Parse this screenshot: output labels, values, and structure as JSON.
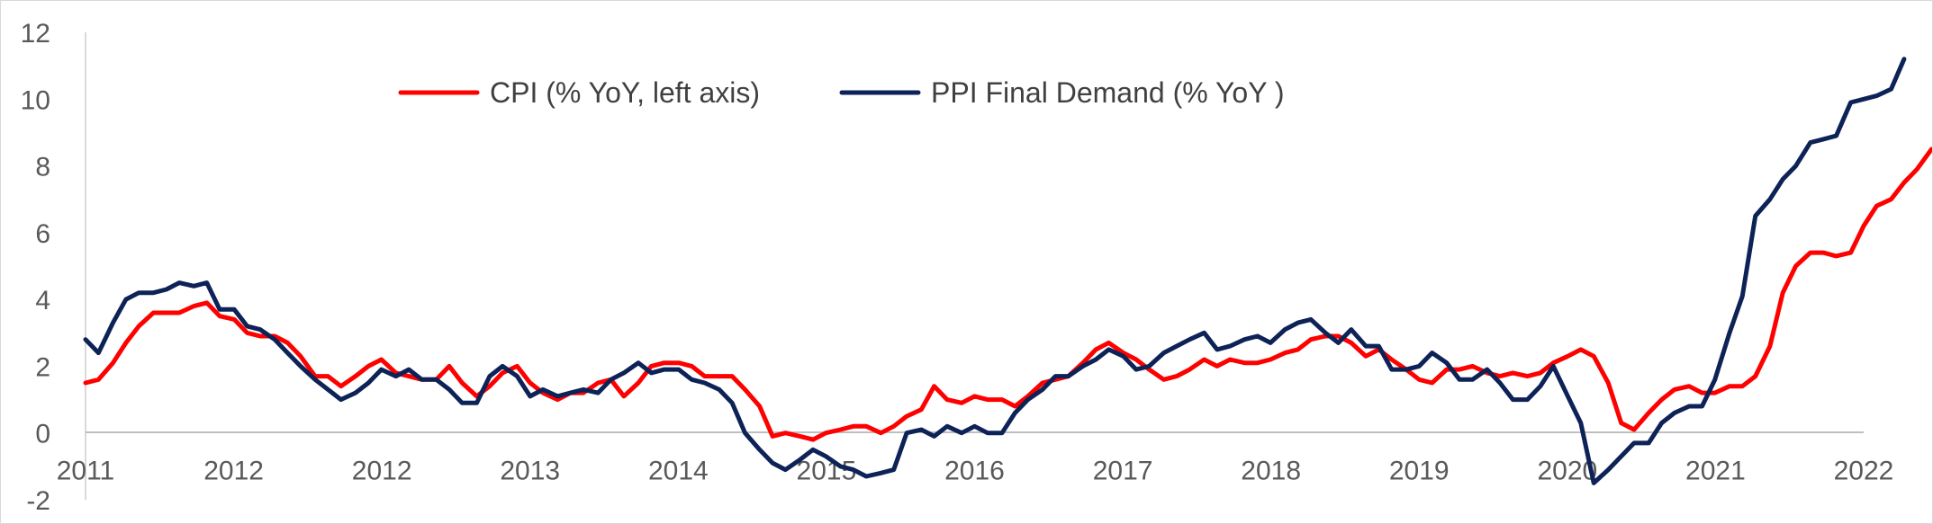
{
  "chart_data": {
    "type": "line",
    "title": "",
    "xlabel": "",
    "ylabel": "",
    "ylim": [
      -2,
      12
    ],
    "yticks": [
      -2,
      0,
      2,
      4,
      6,
      8,
      10,
      12
    ],
    "xlim": [
      2011,
      2022
    ],
    "xtick_labels": [
      "2011",
      "2012",
      "2012",
      "2013",
      "2014",
      "2015",
      "2016",
      "2017",
      "2018",
      "2019",
      "2020",
      "2021",
      "2022"
    ],
    "grid": false,
    "legend_position": "top-center",
    "series": [
      {
        "name": "CPI  (% YoY, left axis)",
        "color": "#ff0000",
        "points": [
          [
            2011.0,
            1.5
          ],
          [
            2011.08,
            1.6
          ],
          [
            2011.17,
            2.1
          ],
          [
            2011.25,
            2.7
          ],
          [
            2011.33,
            3.2
          ],
          [
            2011.42,
            3.6
          ],
          [
            2011.5,
            3.6
          ],
          [
            2011.58,
            3.6
          ],
          [
            2011.67,
            3.8
          ],
          [
            2011.75,
            3.9
          ],
          [
            2011.83,
            3.5
          ],
          [
            2011.92,
            3.4
          ],
          [
            2012.0,
            3.0
          ],
          [
            2012.08,
            2.9
          ],
          [
            2012.17,
            2.9
          ],
          [
            2012.25,
            2.7
          ],
          [
            2012.33,
            2.3
          ],
          [
            2012.42,
            1.7
          ],
          [
            2012.5,
            1.7
          ],
          [
            2012.58,
            1.4
          ],
          [
            2012.67,
            1.7
          ],
          [
            2012.75,
            2.0
          ],
          [
            2012.83,
            2.2
          ],
          [
            2012.92,
            1.8
          ],
          [
            2013.0,
            1.7
          ],
          [
            2013.08,
            1.6
          ],
          [
            2013.17,
            1.6
          ],
          [
            2013.25,
            2.0
          ],
          [
            2013.33,
            1.5
          ],
          [
            2013.42,
            1.1
          ],
          [
            2013.5,
            1.4
          ],
          [
            2013.58,
            1.8
          ],
          [
            2013.67,
            2.0
          ],
          [
            2013.75,
            1.5
          ],
          [
            2013.83,
            1.2
          ],
          [
            2013.92,
            1.0
          ],
          [
            2014.0,
            1.2
          ],
          [
            2014.08,
            1.2
          ],
          [
            2014.17,
            1.5
          ],
          [
            2014.25,
            1.6
          ],
          [
            2014.33,
            1.1
          ],
          [
            2014.42,
            1.5
          ],
          [
            2014.5,
            2.0
          ],
          [
            2014.58,
            2.1
          ],
          [
            2014.67,
            2.1
          ],
          [
            2014.75,
            2.0
          ],
          [
            2014.83,
            1.7
          ],
          [
            2014.92,
            1.7
          ],
          [
            2015.0,
            1.7
          ],
          [
            2015.08,
            1.3
          ],
          [
            2015.17,
            0.8
          ],
          [
            2015.25,
            -0.1
          ],
          [
            2015.33,
            0.0
          ],
          [
            2015.42,
            -0.1
          ],
          [
            2015.5,
            -0.2
          ],
          [
            2015.58,
            0.0
          ],
          [
            2015.67,
            0.1
          ],
          [
            2015.75,
            0.2
          ],
          [
            2015.83,
            0.2
          ],
          [
            2015.92,
            0.0
          ],
          [
            2016.0,
            0.2
          ],
          [
            2016.08,
            0.5
          ],
          [
            2016.17,
            0.7
          ],
          [
            2016.25,
            1.4
          ],
          [
            2016.33,
            1.0
          ],
          [
            2016.42,
            0.9
          ],
          [
            2016.5,
            1.1
          ],
          [
            2016.58,
            1.0
          ],
          [
            2016.67,
            1.0
          ],
          [
            2016.75,
            0.8
          ],
          [
            2016.83,
            1.1
          ],
          [
            2016.92,
            1.5
          ],
          [
            2017.0,
            1.6
          ],
          [
            2017.08,
            1.7
          ],
          [
            2017.17,
            2.1
          ],
          [
            2017.25,
            2.5
          ],
          [
            2017.33,
            2.7
          ],
          [
            2017.42,
            2.4
          ],
          [
            2017.5,
            2.2
          ],
          [
            2017.58,
            1.9
          ],
          [
            2017.67,
            1.6
          ],
          [
            2017.75,
            1.7
          ],
          [
            2017.83,
            1.9
          ],
          [
            2017.92,
            2.2
          ],
          [
            2018.0,
            2.0
          ],
          [
            2018.08,
            2.2
          ],
          [
            2018.17,
            2.1
          ],
          [
            2018.25,
            2.1
          ],
          [
            2018.33,
            2.2
          ],
          [
            2018.42,
            2.4
          ],
          [
            2018.5,
            2.5
          ],
          [
            2018.58,
            2.8
          ],
          [
            2018.67,
            2.9
          ],
          [
            2018.75,
            2.9
          ],
          [
            2018.83,
            2.7
          ],
          [
            2018.92,
            2.3
          ],
          [
            2019.0,
            2.5
          ],
          [
            2019.08,
            2.2
          ],
          [
            2019.17,
            1.9
          ],
          [
            2019.25,
            1.6
          ],
          [
            2019.33,
            1.5
          ],
          [
            2019.42,
            1.9
          ],
          [
            2019.5,
            1.9
          ],
          [
            2019.58,
            2.0
          ],
          [
            2019.67,
            1.8
          ],
          [
            2019.75,
            1.7
          ],
          [
            2019.83,
            1.8
          ],
          [
            2019.92,
            1.7
          ],
          [
            2020.0,
            1.8
          ],
          [
            2020.08,
            2.1
          ],
          [
            2020.17,
            2.3
          ],
          [
            2020.25,
            2.5
          ],
          [
            2020.33,
            2.3
          ],
          [
            2020.42,
            1.5
          ],
          [
            2020.5,
            0.3
          ],
          [
            2020.58,
            0.1
          ],
          [
            2020.67,
            0.6
          ],
          [
            2020.75,
            1.0
          ],
          [
            2020.83,
            1.3
          ],
          [
            2020.92,
            1.4
          ],
          [
            2021.0,
            1.2
          ],
          [
            2021.08,
            1.2
          ],
          [
            2021.17,
            1.4
          ],
          [
            2021.25,
            1.4
          ],
          [
            2021.33,
            1.7
          ],
          [
            2021.42,
            2.6
          ],
          [
            2021.5,
            4.2
          ],
          [
            2021.58,
            5.0
          ],
          [
            2021.67,
            5.4
          ],
          [
            2021.75,
            5.4
          ],
          [
            2021.83,
            5.3
          ],
          [
            2021.92,
            5.4
          ],
          [
            2022.0,
            6.2
          ],
          [
            2022.08,
            6.8
          ],
          [
            2022.17,
            7.0
          ],
          [
            2022.25,
            7.5
          ],
          [
            2022.33,
            7.9
          ],
          [
            2022.42,
            8.5
          ]
        ]
      },
      {
        "name": "PPI Final Demand (% YoY )",
        "color": "#0d2256",
        "points": [
          [
            2011.0,
            2.8
          ],
          [
            2011.08,
            2.4
          ],
          [
            2011.17,
            3.3
          ],
          [
            2011.25,
            4.0
          ],
          [
            2011.33,
            4.2
          ],
          [
            2011.42,
            4.2
          ],
          [
            2011.5,
            4.3
          ],
          [
            2011.58,
            4.5
          ],
          [
            2011.67,
            4.4
          ],
          [
            2011.75,
            4.5
          ],
          [
            2011.83,
            3.7
          ],
          [
            2011.92,
            3.7
          ],
          [
            2012.0,
            3.2
          ],
          [
            2012.08,
            3.1
          ],
          [
            2012.17,
            2.8
          ],
          [
            2012.25,
            2.4
          ],
          [
            2012.33,
            2.0
          ],
          [
            2012.42,
            1.6
          ],
          [
            2012.5,
            1.3
          ],
          [
            2012.58,
            1.0
          ],
          [
            2012.67,
            1.2
          ],
          [
            2012.75,
            1.5
          ],
          [
            2012.83,
            1.9
          ],
          [
            2012.92,
            1.7
          ],
          [
            2013.0,
            1.9
          ],
          [
            2013.08,
            1.6
          ],
          [
            2013.17,
            1.6
          ],
          [
            2013.25,
            1.3
          ],
          [
            2013.33,
            0.9
          ],
          [
            2013.42,
            0.9
          ],
          [
            2013.5,
            1.7
          ],
          [
            2013.58,
            2.0
          ],
          [
            2013.67,
            1.7
          ],
          [
            2013.75,
            1.1
          ],
          [
            2013.83,
            1.3
          ],
          [
            2013.92,
            1.1
          ],
          [
            2014.0,
            1.2
          ],
          [
            2014.08,
            1.3
          ],
          [
            2014.17,
            1.2
          ],
          [
            2014.25,
            1.6
          ],
          [
            2014.33,
            1.8
          ],
          [
            2014.42,
            2.1
          ],
          [
            2014.5,
            1.8
          ],
          [
            2014.58,
            1.9
          ],
          [
            2014.67,
            1.9
          ],
          [
            2014.75,
            1.6
          ],
          [
            2014.83,
            1.5
          ],
          [
            2014.92,
            1.3
          ],
          [
            2015.0,
            0.9
          ],
          [
            2015.08,
            0.0
          ],
          [
            2015.17,
            -0.5
          ],
          [
            2015.25,
            -0.9
          ],
          [
            2015.33,
            -1.1
          ],
          [
            2015.42,
            -0.8
          ],
          [
            2015.5,
            -0.5
          ],
          [
            2015.58,
            -0.7
          ],
          [
            2015.67,
            -1.0
          ],
          [
            2015.75,
            -1.1
          ],
          [
            2015.83,
            -1.3
          ],
          [
            2015.92,
            -1.2
          ],
          [
            2016.0,
            -1.1
          ],
          [
            2016.08,
            0.0
          ],
          [
            2016.17,
            0.1
          ],
          [
            2016.25,
            -0.1
          ],
          [
            2016.33,
            0.2
          ],
          [
            2016.42,
            0.0
          ],
          [
            2016.5,
            0.2
          ],
          [
            2016.58,
            0.0
          ],
          [
            2016.67,
            0.0
          ],
          [
            2016.75,
            0.6
          ],
          [
            2016.83,
            1.0
          ],
          [
            2016.92,
            1.3
          ],
          [
            2017.0,
            1.7
          ],
          [
            2017.08,
            1.7
          ],
          [
            2017.17,
            2.0
          ],
          [
            2017.25,
            2.2
          ],
          [
            2017.33,
            2.5
          ],
          [
            2017.42,
            2.3
          ],
          [
            2017.5,
            1.9
          ],
          [
            2017.58,
            2.0
          ],
          [
            2017.67,
            2.4
          ],
          [
            2017.75,
            2.6
          ],
          [
            2017.83,
            2.8
          ],
          [
            2017.92,
            3.0
          ],
          [
            2018.0,
            2.5
          ],
          [
            2018.08,
            2.6
          ],
          [
            2018.17,
            2.8
          ],
          [
            2018.25,
            2.9
          ],
          [
            2018.33,
            2.7
          ],
          [
            2018.42,
            3.1
          ],
          [
            2018.5,
            3.3
          ],
          [
            2018.58,
            3.4
          ],
          [
            2018.67,
            3.0
          ],
          [
            2018.75,
            2.7
          ],
          [
            2018.83,
            3.1
          ],
          [
            2018.92,
            2.6
          ],
          [
            2019.0,
            2.6
          ],
          [
            2019.08,
            1.9
          ],
          [
            2019.17,
            1.9
          ],
          [
            2019.25,
            2.0
          ],
          [
            2019.33,
            2.4
          ],
          [
            2019.42,
            2.1
          ],
          [
            2019.5,
            1.6
          ],
          [
            2019.58,
            1.6
          ],
          [
            2019.67,
            1.9
          ],
          [
            2019.75,
            1.5
          ],
          [
            2019.83,
            1.0
          ],
          [
            2019.92,
            1.0
          ],
          [
            2020.0,
            1.4
          ],
          [
            2020.08,
            2.0
          ],
          [
            2020.17,
            1.1
          ],
          [
            2020.25,
            0.3
          ],
          [
            2020.33,
            -1.5
          ],
          [
            2020.42,
            -1.1
          ],
          [
            2020.5,
            -0.7
          ],
          [
            2020.58,
            -0.3
          ],
          [
            2020.67,
            -0.3
          ],
          [
            2020.75,
            0.3
          ],
          [
            2020.83,
            0.6
          ],
          [
            2020.92,
            0.8
          ],
          [
            2021.0,
            0.8
          ],
          [
            2021.08,
            1.6
          ],
          [
            2021.17,
            3.0
          ],
          [
            2021.25,
            4.1
          ],
          [
            2021.33,
            6.5
          ],
          [
            2021.42,
            7.0
          ],
          [
            2021.5,
            7.6
          ],
          [
            2021.58,
            8.0
          ],
          [
            2021.67,
            8.7
          ],
          [
            2021.75,
            8.8
          ],
          [
            2021.83,
            8.9
          ],
          [
            2021.92,
            9.9
          ],
          [
            2022.0,
            10.0
          ],
          [
            2022.08,
            10.1
          ],
          [
            2022.17,
            10.3
          ],
          [
            2022.25,
            11.2
          ]
        ]
      }
    ]
  }
}
